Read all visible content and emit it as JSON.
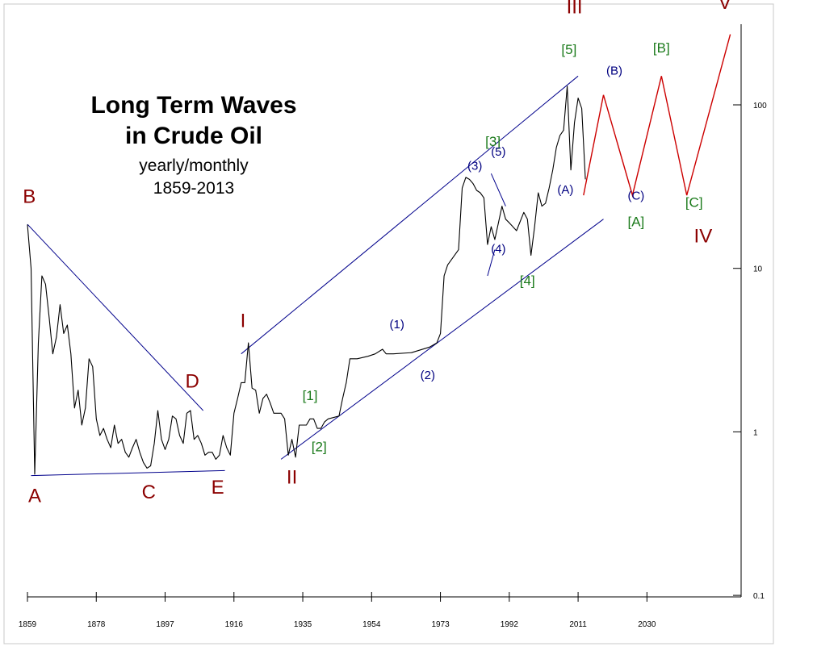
{
  "chart_data": {
    "type": "line",
    "title": "Long Term Waves",
    "title_line2": "in Crude Oil",
    "subtitle": "yearly/monthly",
    "subtitle_line2": "1859-2013",
    "xlabel": "",
    "ylabel": "",
    "y_scale": "log",
    "xlim": [
      1859,
      2057
    ],
    "ylim": [
      0.1,
      300
    ],
    "x_ticks": [
      1859,
      1878,
      1897,
      1916,
      1935,
      1954,
      1973,
      1992,
      2011,
      2030
    ],
    "y_ticks": [
      {
        "value": 0.1,
        "label": "0.1"
      },
      {
        "value": 1,
        "label": "1"
      },
      {
        "value": 10,
        "label": "10"
      },
      {
        "value": 100,
        "label": "100"
      }
    ],
    "grid": false,
    "colors": {
      "price": "#000000",
      "channel": "#00008b",
      "projection": "#cc0000",
      "major_wave": "#8b0000",
      "intermediate_wave": "#1a7a1a",
      "minor_wave": "#000080"
    },
    "series": [
      {
        "style": "price",
        "x": [
          1859,
          1860,
          1861,
          1862,
          1863,
          1864,
          1865,
          1866,
          1867,
          1868,
          1869,
          1870,
          1871,
          1872,
          1873,
          1874,
          1875,
          1876,
          1877,
          1878,
          1879,
          1880,
          1881,
          1882,
          1883,
          1884,
          1885,
          1886,
          1887,
          1888,
          1889,
          1890,
          1891,
          1892,
          1893,
          1894,
          1895,
          1896,
          1897,
          1898,
          1899,
          1900,
          1901,
          1902,
          1903,
          1904,
          1905,
          1906,
          1907,
          1908,
          1909,
          1910,
          1911,
          1912,
          1913,
          1914,
          1915,
          1916,
          1917,
          1918,
          1919,
          1920,
          1921,
          1922,
          1923,
          1924,
          1925,
          1926,
          1927,
          1928,
          1929,
          1930,
          1931,
          1932,
          1933,
          1934,
          1935,
          1936,
          1937,
          1938,
          1939,
          1940,
          1941,
          1942,
          1945,
          1946,
          1947,
          1948,
          1950,
          1953,
          1955,
          1957,
          1958,
          1960,
          1965,
          1970,
          1972,
          1973,
          1974,
          1975,
          1978,
          1979,
          1980,
          1981,
          1982,
          1983,
          1984,
          1985,
          1986,
          1987,
          1988,
          1989,
          1990,
          1991,
          1992,
          1994,
          1996,
          1997,
          1998,
          1999,
          2000,
          2001,
          2002,
          2003,
          2004,
          2005,
          2006,
          2007,
          2008,
          2009,
          2010,
          2011,
          2012,
          2013
        ],
        "y": [
          18.5,
          10,
          0.55,
          3.5,
          9,
          8,
          5,
          3,
          3.8,
          6,
          4,
          4.5,
          3,
          1.4,
          1.8,
          1.1,
          1.4,
          2.8,
          2.5,
          1.2,
          0.95,
          1.05,
          0.9,
          0.8,
          1.1,
          0.85,
          0.9,
          0.75,
          0.7,
          0.8,
          0.9,
          0.75,
          0.65,
          0.6,
          0.62,
          0.85,
          1.35,
          0.9,
          0.78,
          0.9,
          1.25,
          1.2,
          0.95,
          0.85,
          1.3,
          1.35,
          0.9,
          0.95,
          0.85,
          0.72,
          0.75,
          0.75,
          0.68,
          0.72,
          0.95,
          0.8,
          0.72,
          1.3,
          1.6,
          2.0,
          2.0,
          3.5,
          1.85,
          1.8,
          1.3,
          1.6,
          1.7,
          1.5,
          1.3,
          1.3,
          1.3,
          1.2,
          0.72,
          0.9,
          0.7,
          1.1,
          1.1,
          1.1,
          1.2,
          1.2,
          1.05,
          1.05,
          1.15,
          1.2,
          1.25,
          1.6,
          2.0,
          2.8,
          2.8,
          2.9,
          3.0,
          3.2,
          3.0,
          3.0,
          3.05,
          3.3,
          3.5,
          4.0,
          9.0,
          10.5,
          13.0,
          31.0,
          36.0,
          35.0,
          33.0,
          30.0,
          29.0,
          27.0,
          14.0,
          18.0,
          15.0,
          19.0,
          24.0,
          20.0,
          19.0,
          17.0,
          22.0,
          20.0,
          12.0,
          18.0,
          29.0,
          24.0,
          25.0,
          31.0,
          40.0,
          55.0,
          65.0,
          70.0,
          130.0,
          40.0,
          78.0,
          110.0,
          95.0,
          35.0
        ]
      }
    ],
    "channel_lines": [
      {
        "x": [
          1859,
          1907.5
        ],
        "y": [
          18.6,
          1.35
        ]
      },
      {
        "x": [
          1860,
          1913.5
        ],
        "y": [
          0.54,
          0.58
        ]
      },
      {
        "x": [
          1918,
          2011
        ],
        "y": [
          3.0,
          150.0
        ]
      },
      {
        "x": [
          1929,
          2018
        ],
        "y": [
          0.68,
          20.0
        ]
      },
      {
        "x": [
          1987,
          1991
        ],
        "y": [
          38.0,
          24.0
        ]
      },
      {
        "x": [
          1986,
          1988
        ],
        "y": [
          9.0,
          13.0
        ]
      }
    ],
    "projection": {
      "x": [
        2012.5,
        2018,
        2026,
        2034,
        2041,
        2053
      ],
      "y": [
        28.0,
        115.0,
        28.0,
        150.0,
        28.0,
        270.0
      ]
    },
    "annotations": [
      {
        "text": "B",
        "x": 1859.5,
        "y": 27.0,
        "level": "major"
      },
      {
        "text": "A",
        "x": 1861,
        "y": 0.4,
        "level": "major"
      },
      {
        "text": "C",
        "x": 1892.5,
        "y": 0.42,
        "level": "major"
      },
      {
        "text": "D",
        "x": 1904.5,
        "y": 2.0,
        "level": "major"
      },
      {
        "text": "E",
        "x": 1911.5,
        "y": 0.45,
        "level": "major"
      },
      {
        "text": "I",
        "x": 1918.5,
        "y": 4.7,
        "level": "major"
      },
      {
        "text": "II",
        "x": 1932,
        "y": 0.52,
        "level": "major"
      },
      {
        "text": "III",
        "x": 2010,
        "y": 390.0,
        "level": "major"
      },
      {
        "text": "IV",
        "x": 2045.5,
        "y": 15.5,
        "level": "major"
      },
      {
        "text": "V",
        "x": 2051.5,
        "y": 415.0,
        "level": "major"
      },
      {
        "text": "[1]",
        "x": 1937,
        "y": 1.65,
        "level": "intermediate"
      },
      {
        "text": "[2]",
        "x": 1939.5,
        "y": 0.8,
        "level": "intermediate"
      },
      {
        "text": "[3]",
        "x": 1987.5,
        "y": 59.0,
        "level": "intermediate"
      },
      {
        "text": "[4]",
        "x": 1997,
        "y": 8.3,
        "level": "intermediate"
      },
      {
        "text": "[5]",
        "x": 2008.5,
        "y": 215.0,
        "level": "intermediate"
      },
      {
        "text": "[A]",
        "x": 2027,
        "y": 19.0,
        "level": "intermediate"
      },
      {
        "text": "[B]",
        "x": 2034,
        "y": 220.0,
        "level": "intermediate"
      },
      {
        "text": "[C]",
        "x": 2043,
        "y": 25.0,
        "level": "intermediate"
      },
      {
        "text": "(1)",
        "x": 1961,
        "y": 4.5,
        "level": "minor"
      },
      {
        "text": "(2)",
        "x": 1969.5,
        "y": 2.2,
        "level": "minor"
      },
      {
        "text": "(3)",
        "x": 1982.5,
        "y": 42.0,
        "level": "minor"
      },
      {
        "text": "(4)",
        "x": 1989,
        "y": 13.0,
        "level": "minor"
      },
      {
        "text": "(5)",
        "x": 1989,
        "y": 51.0,
        "level": "minor"
      },
      {
        "text": "(A)",
        "x": 2007.5,
        "y": 30.0,
        "level": "minor"
      },
      {
        "text": "(B)",
        "x": 2021,
        "y": 160.0,
        "level": "minor"
      },
      {
        "text": "(C)",
        "x": 2027,
        "y": 27.5,
        "level": "minor"
      }
    ]
  }
}
